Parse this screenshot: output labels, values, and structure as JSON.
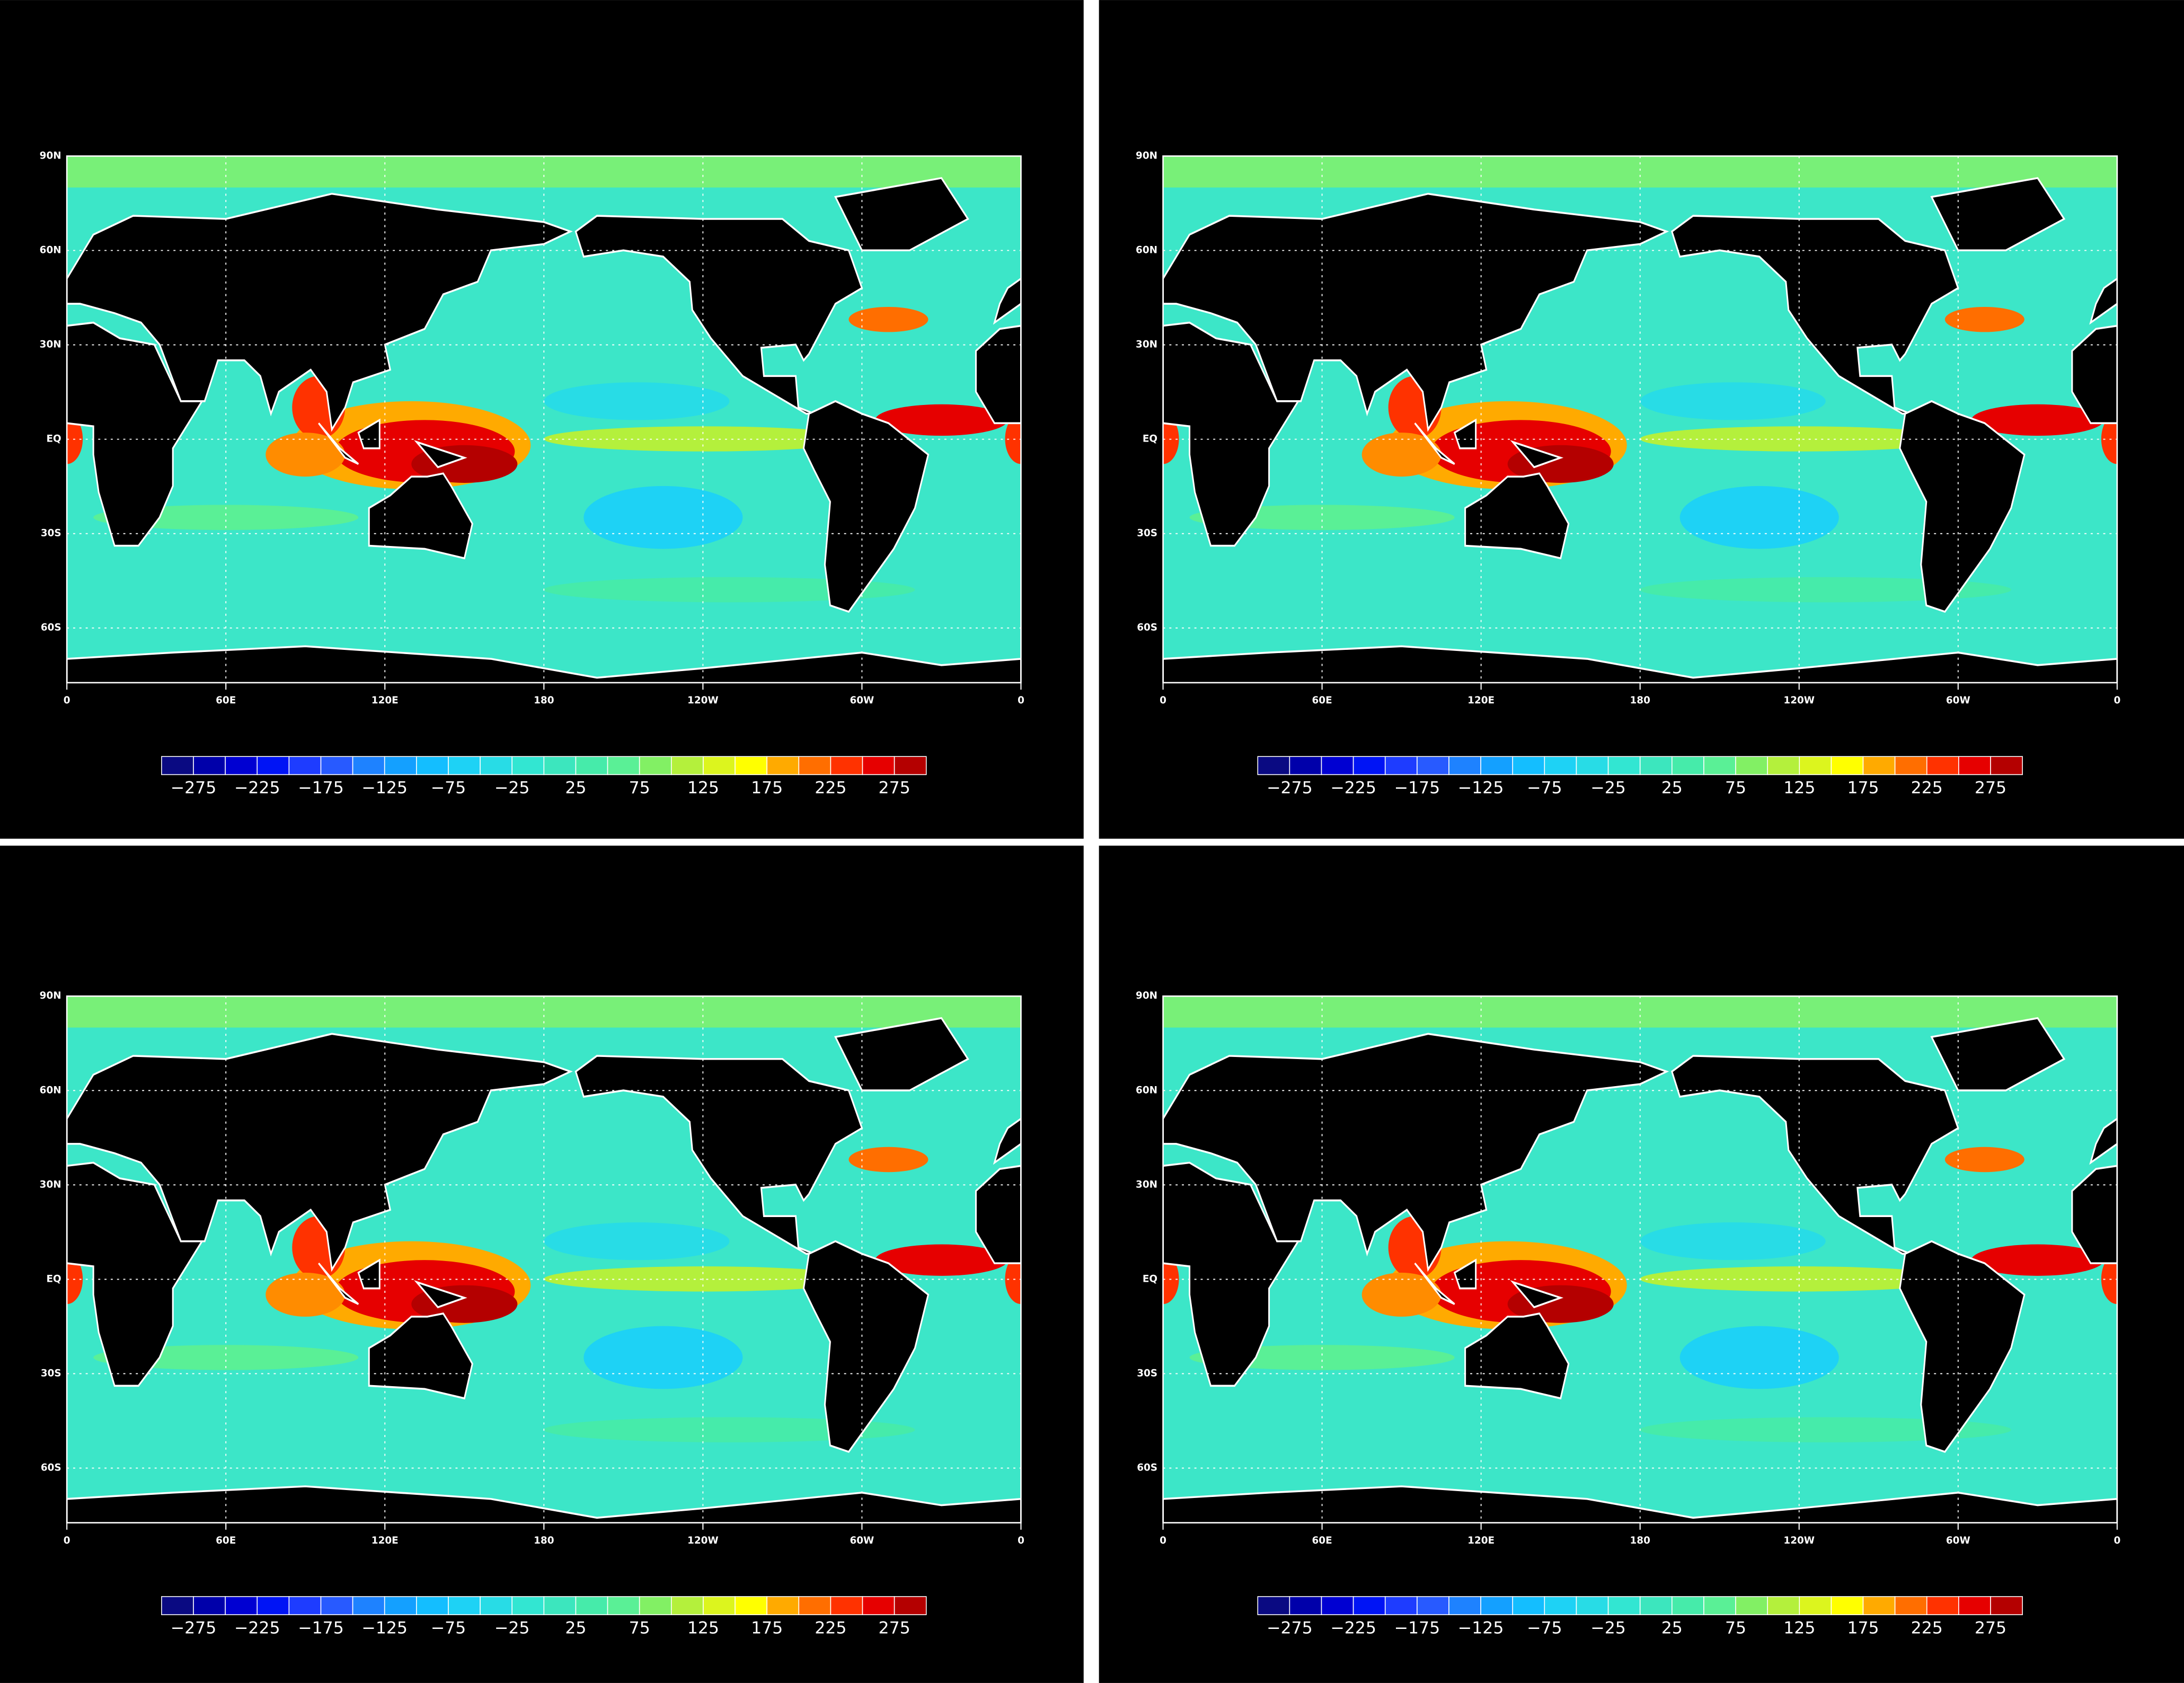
{
  "map_axes": {
    "lat_labels": [
      "90N",
      "60N",
      "30N",
      "EQ",
      "30S",
      "60S"
    ],
    "lon_labels": [
      "0",
      "60E",
      "120E",
      "180",
      "120W",
      "60W",
      "0"
    ]
  },
  "colorbar": {
    "labels": [
      "−275",
      "−225",
      "−175",
      "−125",
      "−75",
      "−25",
      "25",
      "75",
      "125",
      "175",
      "225",
      "275"
    ],
    "colors": [
      "#0a0a82",
      "#0000aa",
      "#0000d2",
      "#0014f5",
      "#1e3cff",
      "#285aff",
      "#1e82ff",
      "#14a0ff",
      "#14beff",
      "#1ed2f5",
      "#28dce6",
      "#32e6d2",
      "#3ce6be",
      "#46ebaa",
      "#5af096",
      "#82f064",
      "#b4f03c",
      "#dcf51e",
      "#ffff00",
      "#ffaa00",
      "#ff6e00",
      "#ff3200",
      "#e60000",
      "#b40000"
    ]
  }
}
